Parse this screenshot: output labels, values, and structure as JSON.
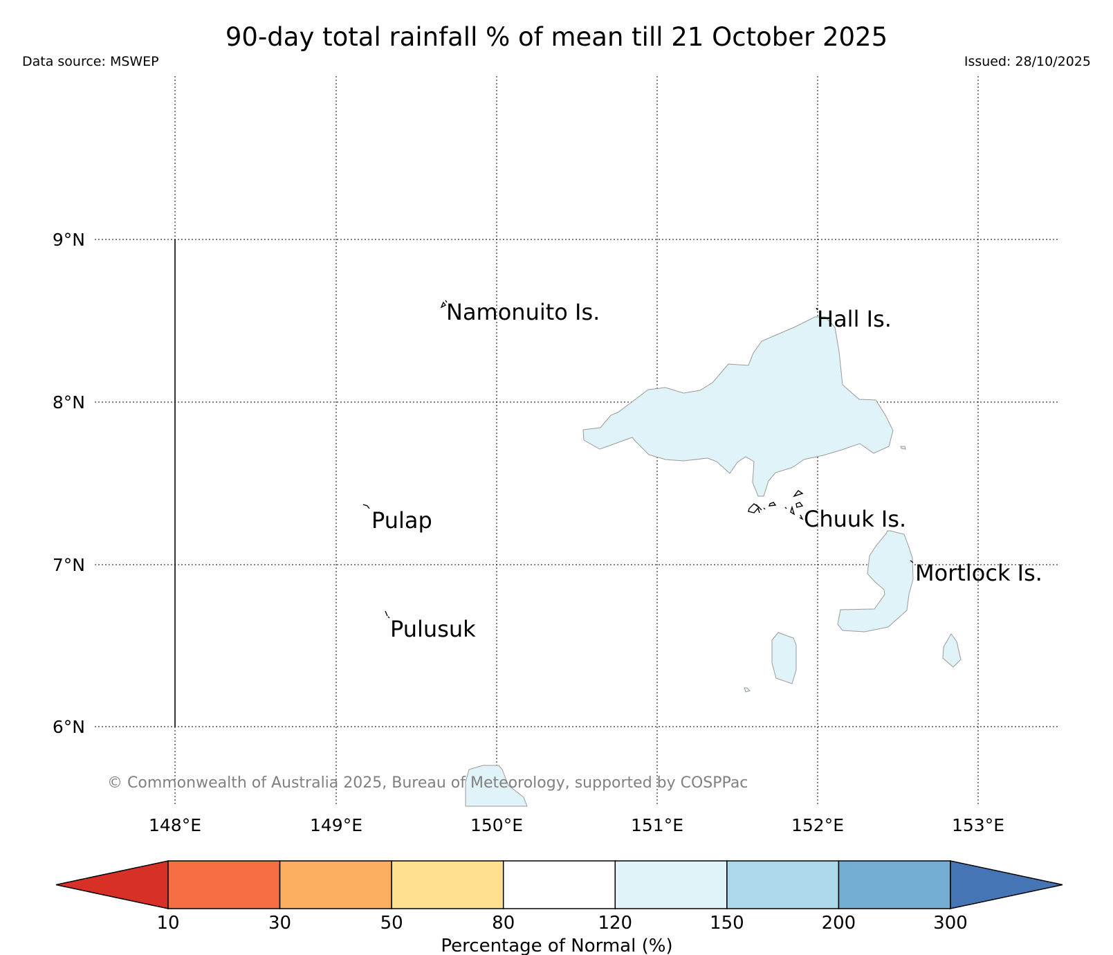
{
  "header": {
    "title": "90-day total rainfall % of mean till 21 October 2025",
    "data_source": "Data source: MSWEP",
    "issued": "Issued: 28/10/2025"
  },
  "map": {
    "lon_ticks": [
      "148°E",
      "149°E",
      "150°E",
      "151°E",
      "152°E",
      "153°E"
    ],
    "lat_ticks": [
      "9°N",
      "8°N",
      "7°N",
      "6°N"
    ],
    "islands": [
      {
        "name": "Namonuito Is."
      },
      {
        "name": "Hall Is."
      },
      {
        "name": "Pulap"
      },
      {
        "name": "Chuuk Is."
      },
      {
        "name": "Mortlock Is."
      },
      {
        "name": "Pulusuk"
      }
    ],
    "copyright": "© Commonwealth of Australia 2025, Bureau of Meteorology, supported by COSPPac"
  },
  "colorbar": {
    "title": "Percentage of Normal (%)",
    "bins": [
      {
        "label": "<10",
        "color": "#d73027"
      },
      {
        "label": "10-30",
        "color": "#f46d43"
      },
      {
        "label": "30-50",
        "color": "#fdae61"
      },
      {
        "label": "50-80",
        "color": "#fee090"
      },
      {
        "label": "80-120",
        "color": "#ffffff"
      },
      {
        "label": "120-150",
        "color": "#e0f3f8"
      },
      {
        "label": "150-200",
        "color": "#abd9e9"
      },
      {
        "label": "200-300",
        "color": "#74add1"
      },
      {
        "label": ">300",
        "color": "#4575b4"
      }
    ],
    "tick_labels": [
      "10",
      "30",
      "50",
      "80",
      "120",
      "150",
      "200",
      "300"
    ]
  },
  "colors": {
    "anomaly_fill": "#e0f3f8",
    "copyright_text": "#808080"
  }
}
